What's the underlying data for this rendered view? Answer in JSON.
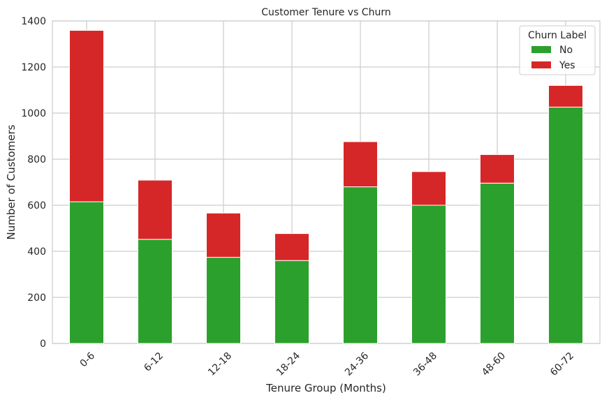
{
  "chart_data": {
    "type": "bar",
    "stacked": true,
    "title": "Customer Tenure vs Churn",
    "xlabel": "Tenure Group (Months)",
    "ylabel": "Number of Customers",
    "categories": [
      "0-6",
      "6-12",
      "12-18",
      "18-24",
      "24-36",
      "36-48",
      "48-60",
      "60-72"
    ],
    "series": [
      {
        "name": "No",
        "color": "#2ca02c",
        "values": [
          615,
          452,
          374,
          360,
          680,
          600,
          696,
          1026
        ]
      },
      {
        "name": "Yes",
        "color": "#d62728",
        "values": [
          744,
          257,
          192,
          117,
          196,
          146,
          124,
          94
        ]
      }
    ],
    "ylim": [
      0,
      1400
    ],
    "yticks": [
      0,
      200,
      400,
      600,
      800,
      1000,
      1200,
      1400
    ],
    "grid": true,
    "legend": {
      "title": "Churn Label",
      "placement": "top-right"
    }
  }
}
